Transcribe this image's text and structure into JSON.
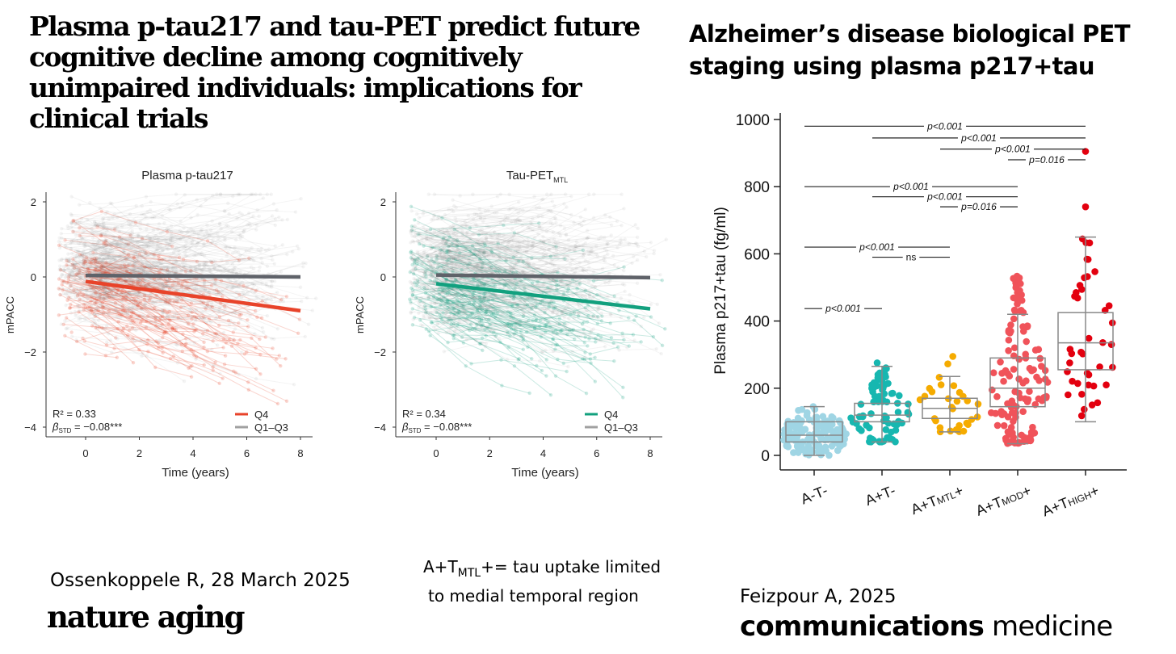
{
  "left_panel": {
    "title": "Plasma p-tau217 and tau-PET predict future cognitive decline among cognitively unimpaired individuals: implications for clinical trials",
    "citation": "Ossenkoppele R, 28 March 2025",
    "journal_logo": "nature aging"
  },
  "note": {
    "prefix": "A+T",
    "sub": "MTL",
    "suffix": "+= tau uptake limited",
    "line2": "to medial temporal region"
  },
  "right_panel": {
    "title_line1": "Alzheimer’s disease biological PET",
    "title_line2": "staging using plasma p217+tau",
    "citation": "Feizpour A, 2025",
    "journal_bold": "communications",
    "journal_rest": " medicine"
  },
  "colors": {
    "q4_red": "#e8432a",
    "q4_green": "#12a07e",
    "gray": "#5f6269",
    "atm": "#9fd5e4",
    "atp": "#17b7b0",
    "mtl": "#f5ab00",
    "mod": "#f0535a",
    "high": "#e3000f"
  },
  "chart_data": [
    {
      "type": "line",
      "title": "Plasma p-tau217",
      "xlabel": "Time (years)",
      "ylabel": "mPACC",
      "xticks": [
        "0",
        "2",
        "4",
        "6",
        "8"
      ],
      "yticks": [
        "2",
        "0",
        "−2",
        "−4"
      ],
      "xlim": [
        -1.5,
        8.5
      ],
      "ylim": [
        -4.3,
        2.3
      ],
      "series": [
        {
          "name": "Q4",
          "x": [
            0,
            8
          ],
          "y": [
            -0.12,
            -0.9
          ],
          "color": "#e8432a"
        },
        {
          "name": "Q1–Q3",
          "x": [
            0,
            8
          ],
          "y": [
            0.04,
            0.0
          ],
          "color": "#5f6269"
        }
      ],
      "stats": {
        "r2": "R² = 0.33",
        "beta_label": "β",
        "beta_sub": "STD",
        "beta_value": " = −0.08***"
      }
    },
    {
      "type": "line",
      "title": "Tau-PET",
      "title_sub": "MTL",
      "xlabel": "Time (years)",
      "ylabel": "mPACC",
      "xticks": [
        "0",
        "2",
        "4",
        "6",
        "8"
      ],
      "yticks": [
        "2",
        "0",
        "−2",
        "−4"
      ],
      "xlim": [
        -1.5,
        8.5
      ],
      "ylim": [
        -4.3,
        2.3
      ],
      "series": [
        {
          "name": "Q4",
          "x": [
            0,
            8
          ],
          "y": [
            -0.18,
            -0.85
          ],
          "color": "#12a07e"
        },
        {
          "name": "Q1–Q3",
          "x": [
            0,
            8
          ],
          "y": [
            0.05,
            -0.02
          ],
          "color": "#5f6269"
        }
      ],
      "stats": {
        "r2": "R² = 0.34",
        "beta_label": "β",
        "beta_sub": "STD",
        "beta_value": " = −0.08***"
      }
    },
    {
      "type": "box",
      "ylabel": "Plasma p217+tau (fg/ml)",
      "ylim": [
        0,
        1000
      ],
      "yticks": [
        "0",
        "200",
        "400",
        "600",
        "800",
        "1000"
      ],
      "categories": [
        {
          "pre": "A-T-",
          "sub": "",
          "post": ""
        },
        {
          "pre": "A+T-",
          "sub": "",
          "post": ""
        },
        {
          "pre": "A+T",
          "sub": "MTL",
          "post": "+"
        },
        {
          "pre": "A+T",
          "sub": "MOD",
          "post": "+"
        },
        {
          "pre": "A+T",
          "sub": "HIGH",
          "post": "+"
        }
      ],
      "boxes": [
        {
          "min": 0,
          "q1": 40,
          "median": 60,
          "q3": 100,
          "max": 145,
          "n": 150,
          "pmax": 215
        },
        {
          "min": 40,
          "q1": 100,
          "median": 120,
          "q3": 155,
          "max": 265,
          "n": 80,
          "pmax": 285
        },
        {
          "min": 70,
          "q1": 110,
          "median": 140,
          "q3": 170,
          "max": 235,
          "n": 30,
          "pmax": 310
        },
        {
          "min": 35,
          "q1": 145,
          "median": 200,
          "q3": 290,
          "max": 420,
          "n": 130,
          "pmax": 540
        },
        {
          "min": 100,
          "q1": 255,
          "median": 335,
          "q3": 425,
          "max": 650,
          "n": 40,
          "pmax": 650,
          "outliers": [
            740,
            905
          ]
        }
      ],
      "comparisons": [
        {
          "from": 0,
          "to": 4,
          "y": 980,
          "label": "p<0.001"
        },
        {
          "from": 1,
          "to": 4,
          "y": 945,
          "label": "p<0.001"
        },
        {
          "from": 2,
          "to": 4,
          "y": 912,
          "label": "p<0.001"
        },
        {
          "from": 3,
          "to": 4,
          "y": 880,
          "label": "p=0.016"
        },
        {
          "from": 0,
          "to": 3,
          "y": 800,
          "label": "p<0.001"
        },
        {
          "from": 1,
          "to": 3,
          "y": 770,
          "label": "p<0.001"
        },
        {
          "from": 2,
          "to": 3,
          "y": 740,
          "label": "p=0.016"
        },
        {
          "from": 0,
          "to": 2,
          "y": 620,
          "label": "p<0.001"
        },
        {
          "from": 1,
          "to": 2,
          "y": 590,
          "label": "ns"
        },
        {
          "from": 0,
          "to": 1,
          "y": 437,
          "label": "p<0.001"
        }
      ]
    }
  ]
}
